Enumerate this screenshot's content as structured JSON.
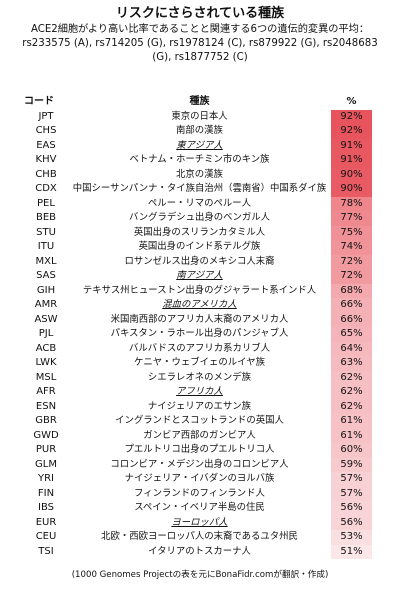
{
  "title": "リスクにさらされている種族",
  "subtitle": "ACE2細胞がより高い比率であることと関連する6つの遺伝的変異の平均：rs233575 (A), rs714205 (G), rs1978124 (C), rs879922 (G), rs2048683 (G), rs1877752 (C)",
  "footer": "(1000 Genomes Projectの表を元にBonaFidr.comが翻訳・作成)",
  "colors": {
    "high": "#e8545d",
    "low": "#fbe6e8"
  },
  "chart_data": {
    "type": "table",
    "columns": [
      "コード",
      "種族",
      "%"
    ],
    "rows": [
      {
        "code": "JPT",
        "population": "東京の日本人",
        "value": 92,
        "label": "92%",
        "region": false
      },
      {
        "code": "CHS",
        "population": "南部の漢族",
        "value": 92,
        "label": "92%",
        "region": false
      },
      {
        "code": "EAS",
        "population": "東アジア人",
        "value": 91,
        "label": "91%",
        "region": true
      },
      {
        "code": "KHV",
        "population": "ベトナム・ホーチミン市のキン族",
        "value": 91,
        "label": "91%",
        "region": false
      },
      {
        "code": "CHB",
        "population": "北京の漢族",
        "value": 90,
        "label": "90%",
        "region": false
      },
      {
        "code": "CDX",
        "population": "中国シーサンパンナ・タイ族自治州（雲南省）中国系ダイ族",
        "value": 90,
        "label": "90%",
        "region": false
      },
      {
        "code": "PEL",
        "population": "ペルー・リマのペルー人",
        "value": 78,
        "label": "78%",
        "region": false
      },
      {
        "code": "BEB",
        "population": "バングラデシュ出身のベンガル人",
        "value": 77,
        "label": "77%",
        "region": false
      },
      {
        "code": "STU",
        "population": "英国出身のスリランカタミル人",
        "value": 75,
        "label": "75%",
        "region": false
      },
      {
        "code": "ITU",
        "population": "英国出身のインド系テルグ族",
        "value": 74,
        "label": "74%",
        "region": false
      },
      {
        "code": "MXL",
        "population": "ロサンゼルス出身のメキシコ人末裔",
        "value": 72,
        "label": "72%",
        "region": false
      },
      {
        "code": "SAS",
        "population": "南アジア人",
        "value": 72,
        "label": "72%",
        "region": true
      },
      {
        "code": "GIH",
        "population": "テキサス州ヒューストン出身のグジャラート系インド人",
        "value": 68,
        "label": "68%",
        "region": false
      },
      {
        "code": "AMR",
        "population": "混血のアメリカ人",
        "value": 66,
        "label": "66%",
        "region": true
      },
      {
        "code": "ASW",
        "population": "米国南西部のアフリカ人末裔のアメリカ人",
        "value": 66,
        "label": "66%",
        "region": false
      },
      {
        "code": "PJL",
        "population": "パキスタン・ラホール出身のパンジャブ人",
        "value": 65,
        "label": "65%",
        "region": false
      },
      {
        "code": "ACB",
        "population": "バルバドスのアフリカ系カリブ人",
        "value": 64,
        "label": "64%",
        "region": false
      },
      {
        "code": "LWK",
        "population": "ケニヤ・ウェブイェのルイヤ族",
        "value": 63,
        "label": "63%",
        "region": false
      },
      {
        "code": "MSL",
        "population": "シエラレオネのメンデ族",
        "value": 62,
        "label": "62%",
        "region": false
      },
      {
        "code": "AFR",
        "population": "アフリカ人",
        "value": 62,
        "label": "62%",
        "region": true
      },
      {
        "code": "ESN",
        "population": "ナイジェリアのエサン族",
        "value": 62,
        "label": "62%",
        "region": false
      },
      {
        "code": "GBR",
        "population": "イングランドとスコットランドの英国人",
        "value": 61,
        "label": "61%",
        "region": false
      },
      {
        "code": "GWD",
        "population": "ガンビア西部のガンビア人",
        "value": 61,
        "label": "61%",
        "region": false
      },
      {
        "code": "PUR",
        "population": "プエルトリコ出身のプエルトリコ人",
        "value": 60,
        "label": "60%",
        "region": false
      },
      {
        "code": "GLM",
        "population": "コロンビア・メデジン出身のコロンビア人",
        "value": 59,
        "label": "59%",
        "region": false
      },
      {
        "code": "YRI",
        "population": "ナイジェリア・イバダンのヨルバ族",
        "value": 57,
        "label": "57%",
        "region": false
      },
      {
        "code": "FIN",
        "population": "フィンランドのフィンランド人",
        "value": 57,
        "label": "57%",
        "region": false
      },
      {
        "code": "IBS",
        "population": "スペイン・イベリア半島の住民",
        "value": 56,
        "label": "56%",
        "region": false
      },
      {
        "code": "EUR",
        "population": "ヨーロッパ人",
        "value": 56,
        "label": "56%",
        "region": true
      },
      {
        "code": "CEU",
        "population": "北欧・西欧ヨーロッパ人の末裔であるユタ州民",
        "value": 53,
        "label": "53%",
        "region": false
      },
      {
        "code": "TSI",
        "population": "イタリアのトスカーナ人",
        "value": 51,
        "label": "51%",
        "region": false
      }
    ]
  }
}
